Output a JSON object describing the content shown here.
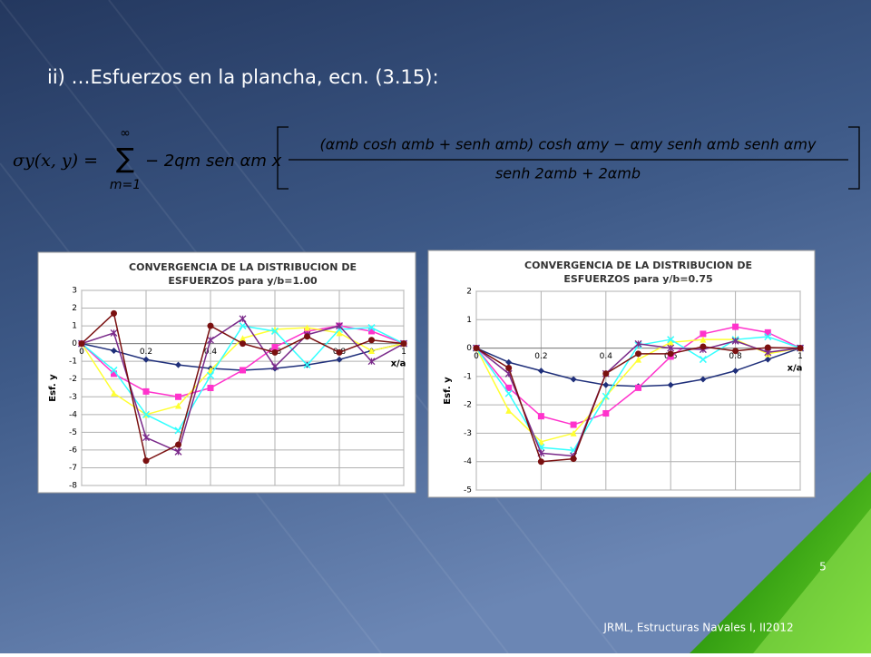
{
  "heading": "ii) …Esfuerzos en la plancha, ecn. (3.15):",
  "formula": {
    "lhs": "σy(x, y) =",
    "sum_top": "∞",
    "sum_symbol": "∑",
    "sum_bottom": "m=1",
    "factor": "− 2qm sen αm x",
    "numerator": "(αmb cosh αmb + senh αmb) cosh αmy − αmy senh αmb senh αmy",
    "denominator": "senh 2αmb + 2αmb"
  },
  "page_number": 5,
  "footer": "JRML, Estructuras Navales I, II2012",
  "chart_data": [
    {
      "type": "line",
      "title": [
        "CONVERGENCIA DE LA DISTRIBUCION DE",
        "ESFUERZOS para y/b=1.00"
      ],
      "x_label": "x/a",
      "y_label": "Esf. y",
      "x": [
        0,
        0.1,
        0.2,
        0.3,
        0.4,
        0.5,
        0.6,
        0.7,
        0.8,
        0.9,
        1
      ],
      "xlim": [
        0,
        1
      ],
      "xticks": [
        0,
        0.2,
        0.4,
        0.6,
        0.8,
        1
      ],
      "ylim": [
        -8,
        3
      ],
      "yticks": [
        -8,
        -7,
        -6,
        -5,
        -4,
        -3,
        -2,
        -1,
        0,
        1,
        2,
        3
      ],
      "grid": true,
      "series": [
        {
          "color": "#1f2f7a",
          "marker": "diamond",
          "values": [
            0,
            -0.4,
            -0.9,
            -1.2,
            -1.4,
            -1.5,
            -1.4,
            -1.2,
            -0.9,
            -0.4,
            0
          ]
        },
        {
          "color": "#ff33cc",
          "marker": "square",
          "values": [
            0,
            -1.7,
            -2.7,
            -3.0,
            -2.5,
            -1.5,
            -0.2,
            0.7,
            1.0,
            0.7,
            0
          ]
        },
        {
          "color": "#ffff33",
          "marker": "triangle",
          "values": [
            0,
            -2.8,
            -4.0,
            -3.5,
            -1.5,
            0.3,
            0.8,
            0.9,
            0.6,
            -0.4,
            0
          ]
        },
        {
          "color": "#33ffff",
          "marker": "x",
          "values": [
            0,
            -1.5,
            -4.0,
            -4.9,
            -1.8,
            1.0,
            0.7,
            -1.2,
            0.8,
            0.9,
            0
          ]
        },
        {
          "color": "#7a2a8a",
          "marker": "star",
          "values": [
            0,
            0.6,
            -5.3,
            -6.1,
            0.2,
            1.4,
            -1.3,
            0.5,
            1.0,
            -1.0,
            0
          ]
        },
        {
          "color": "#7a1010",
          "marker": "circle",
          "values": [
            0,
            1.7,
            -6.6,
            -5.7,
            1.0,
            0,
            -0.5,
            0.4,
            -0.5,
            0.2,
            0
          ]
        }
      ]
    },
    {
      "type": "line",
      "title": [
        "CONVERGENCIA DE LA DISTRIBUCION DE",
        "ESFUERZOS para y/b=0.75"
      ],
      "x_label": "x/a",
      "y_label": "Esf. y",
      "x": [
        0,
        0.1,
        0.2,
        0.3,
        0.4,
        0.5,
        0.6,
        0.7,
        0.8,
        0.9,
        1
      ],
      "xlim": [
        0,
        1
      ],
      "xticks": [
        0,
        0.2,
        0.4,
        0.6,
        0.8,
        1
      ],
      "ylim": [
        -5,
        2
      ],
      "yticks": [
        -5,
        -4,
        -3,
        -2,
        -1,
        0,
        1,
        2
      ],
      "grid": true,
      "series": [
        {
          "color": "#1f2f7a",
          "marker": "diamond",
          "values": [
            0,
            -0.5,
            -0.8,
            -1.1,
            -1.3,
            -1.35,
            -1.3,
            -1.1,
            -0.8,
            -0.4,
            0
          ]
        },
        {
          "color": "#ff33cc",
          "marker": "square",
          "values": [
            0,
            -1.4,
            -2.4,
            -2.7,
            -2.3,
            -1.4,
            -0.3,
            0.5,
            0.75,
            0.55,
            0
          ]
        },
        {
          "color": "#ffff33",
          "marker": "triangle",
          "values": [
            0,
            -2.2,
            -3.3,
            -3.0,
            -1.7,
            -0.4,
            0.2,
            0.3,
            0.3,
            -0.2,
            0
          ]
        },
        {
          "color": "#33ffff",
          "marker": "x",
          "values": [
            0,
            -1.6,
            -3.5,
            -3.6,
            -1.7,
            0.1,
            0.3,
            -0.4,
            0.3,
            0.4,
            0
          ]
        },
        {
          "color": "#7a2a8a",
          "marker": "star",
          "values": [
            0,
            -0.9,
            -3.7,
            -3.8,
            -0.9,
            0.15,
            0.0,
            -0.05,
            0.25,
            -0.15,
            0
          ]
        },
        {
          "color": "#7a1010",
          "marker": "circle",
          "values": [
            0,
            -0.7,
            -4.0,
            -3.9,
            -0.9,
            -0.2,
            -0.2,
            0.05,
            -0.1,
            0.02,
            0
          ]
        }
      ]
    }
  ]
}
